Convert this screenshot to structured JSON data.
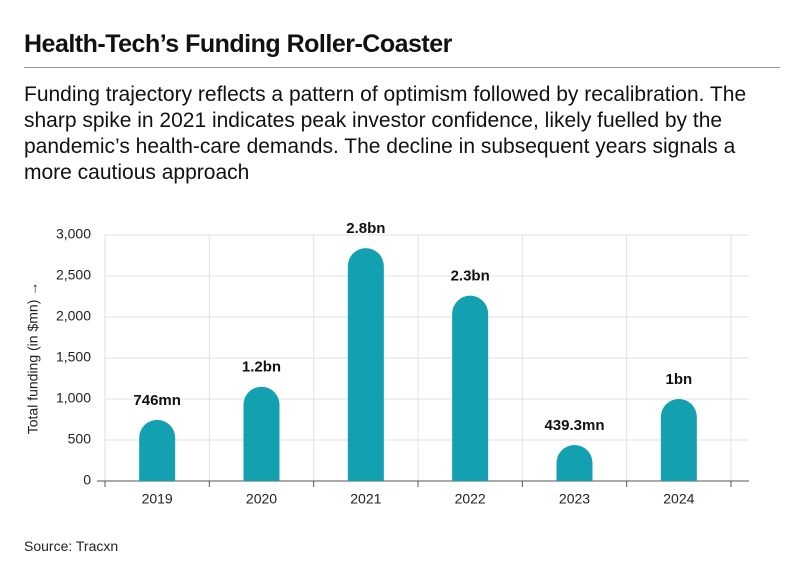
{
  "chart_data": {
    "type": "bar",
    "title": "Health-Tech’s Funding Roller-Coaster",
    "subtitle": "Funding trajectory reflects a pattern of optimism followed by recalibration. The sharp spike in 2021 indicates peak investor confidence, likely fuelled by the pandemic’s health-care demands. The decline in subsequent years signals a more cautious approach",
    "y_label": "Total funding (in $mn) →",
    "source": "Source: Tracxn",
    "categories": [
      "2019",
      "2020",
      "2021",
      "2022",
      "2023",
      "2024"
    ],
    "values": [
      746,
      1150,
      2840,
      2260,
      439.3,
      1000
    ],
    "value_labels": [
      "746mn",
      "1.2bn",
      "2.8bn",
      "2.3bn",
      "439.3mn",
      "1bn"
    ],
    "color": "#13a1b1",
    "ylim": [
      0,
      3000
    ],
    "yticks": [
      0,
      500,
      {
        "value": 1000,
        "label": "1,000"
      },
      {
        "value": 1500,
        "label": "1,500"
      },
      {
        "value": 2000,
        "label": "2,000"
      },
      {
        "value": 2500,
        "label": "2,500"
      },
      {
        "value": 3000,
        "label": "3,000"
      }
    ],
    "grid": true
  }
}
